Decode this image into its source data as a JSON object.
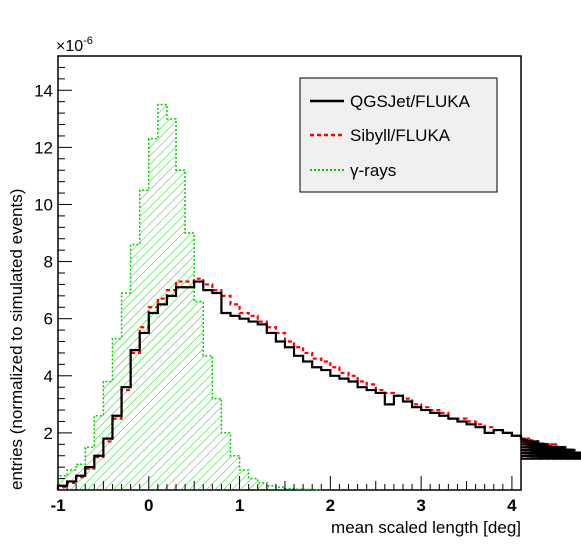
{
  "chart_data": {
    "type": "histogram",
    "title": "",
    "xlabel": "mean scaled length [deg]",
    "ylabel": "entries (normalized to simulated events)",
    "y_multiplier_label": "×10",
    "y_multiplier_exponent": "-6",
    "xlim": [
      -1,
      4.1
    ],
    "ylim": [
      0,
      15.2
    ],
    "x_ticks": [
      -1,
      0,
      1,
      2,
      3,
      4
    ],
    "y_ticks": [
      2,
      4,
      6,
      8,
      10,
      12,
      14
    ],
    "bin_width": 0.1,
    "legend_position": "top-right",
    "grid": false,
    "series": [
      {
        "name": "QGSJet/FLUKA",
        "color": "#000000",
        "style": "solid",
        "bin_starts_from": -1.0,
        "values": [
          0.15,
          0.3,
          0.5,
          0.8,
          1.2,
          1.8,
          2.6,
          3.6,
          4.9,
          5.5,
          6.2,
          6.5,
          6.8,
          7.1,
          7.1,
          7.3,
          7.0,
          6.9,
          6.2,
          6.1,
          6.0,
          5.9,
          5.8,
          5.5,
          5.2,
          5.0,
          4.7,
          4.5,
          4.3,
          4.2,
          4.0,
          3.9,
          3.8,
          3.6,
          3.5,
          3.4,
          3.0,
          3.3,
          3.1,
          2.9,
          2.8,
          2.7,
          2.6,
          2.5,
          2.4,
          2.3,
          2.2,
          2.0,
          2.1,
          2.0,
          1.9,
          1.8,
          1.7,
          1.7,
          1.6,
          1.5,
          1.5,
          1.4,
          1.3,
          1.2,
          1.1
        ]
      },
      {
        "name": "Sibyll/FLUKA",
        "color": "#ff0000",
        "style": "dashed",
        "bin_starts_from": -1.0,
        "values": [
          0.1,
          0.25,
          0.45,
          0.75,
          1.15,
          1.7,
          2.5,
          3.5,
          4.8,
          5.7,
          6.4,
          6.7,
          7.0,
          7.3,
          7.3,
          7.4,
          7.2,
          7.0,
          6.8,
          6.5,
          6.2,
          6.1,
          5.9,
          5.7,
          5.5,
          5.2,
          5.0,
          4.8,
          4.6,
          4.5,
          4.3,
          4.1,
          4.0,
          3.8,
          3.7,
          3.5,
          3.4,
          3.3,
          3.2,
          3.0,
          2.9,
          2.8,
          2.7,
          2.5,
          2.5,
          2.4,
          2.3,
          2.2,
          2.1,
          2.0,
          1.9,
          1.8,
          1.8,
          1.7,
          1.6,
          1.6,
          1.5,
          1.4,
          1.3,
          1.2,
          1.1
        ]
      },
      {
        "name": "γ-rays",
        "color": "#00cc00",
        "style": "dotted",
        "fill": "hatched",
        "bin_starts_from": -1.0,
        "values": [
          0.5,
          0.7,
          0.9,
          1.5,
          2.6,
          3.8,
          5.3,
          6.9,
          8.6,
          10.5,
          12.3,
          13.5,
          13.0,
          11.2,
          9.0,
          6.6,
          4.7,
          3.2,
          2.0,
          1.2,
          0.7,
          0.4,
          0.25,
          0.15,
          0.1,
          0.05,
          0.03,
          0.02,
          0.01
        ]
      }
    ]
  }
}
